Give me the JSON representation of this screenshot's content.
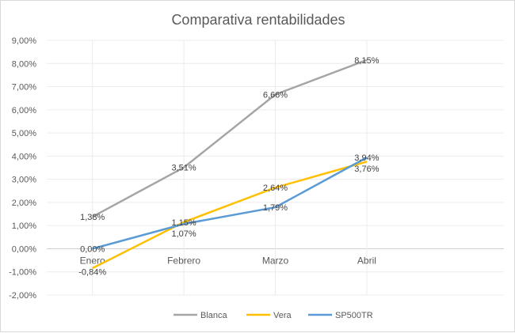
{
  "chart_data": {
    "type": "line",
    "title": "Comparativa rentabilidades",
    "categories": [
      "Enero",
      "Febrero",
      "Marzo",
      "Abril"
    ],
    "ylim": [
      -2,
      9
    ],
    "yticks": [
      "-2,00%",
      "-1,00%",
      "0,00%",
      "1,00%",
      "2,00%",
      "3,00%",
      "4,00%",
      "5,00%",
      "6,00%",
      "7,00%",
      "8,00%",
      "9,00%"
    ],
    "grid": true,
    "legend": "bottom",
    "series": [
      {
        "name": "Blanca",
        "color": "#a5a5a5",
        "values": [
          1.38,
          3.51,
          6.66,
          8.15
        ],
        "labels": [
          "1,38%",
          "3,51%",
          "6,66%",
          "8,15%"
        ]
      },
      {
        "name": "Vera",
        "color": "#ffc000",
        "values": [
          -0.84,
          1.15,
          2.64,
          3.76
        ],
        "labels": [
          "-0,84%",
          "1,15%",
          "2,64%",
          "3,76%"
        ]
      },
      {
        "name": "SP500TR",
        "color": "#5b9bd5",
        "values": [
          0.0,
          1.07,
          1.79,
          3.94
        ],
        "labels": [
          "0,00%",
          "1,07%",
          "1,79%",
          "3,94%"
        ]
      }
    ]
  }
}
